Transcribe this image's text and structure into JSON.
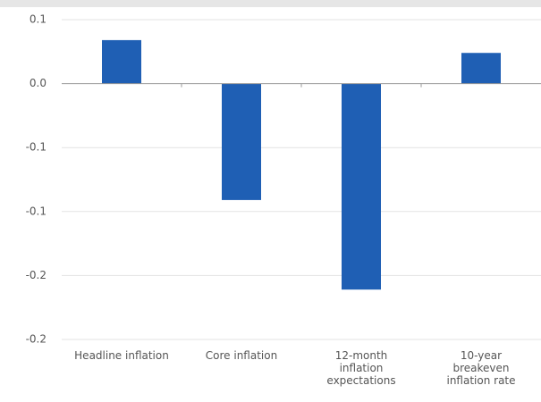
{
  "chart_data": {
    "type": "bar",
    "categories": [
      "Headline inflation",
      "Core inflation",
      "12-month inflation expectations",
      "10-year breakeven inflation rate"
    ],
    "values": [
      0.034,
      -0.091,
      -0.161,
      0.024
    ],
    "color": "#1f5fb4",
    "ylim": [
      -0.2,
      0.05
    ],
    "yticks": [
      {
        "value": 0.05,
        "label": "0.1"
      },
      {
        "value": 0,
        "label": "0.0"
      },
      {
        "value": -0.05,
        "label": "-0.1"
      },
      -0.1,
      {
        "value": -0.15,
        "label": "-0.2"
      },
      -0.2
    ],
    "grid": true
  }
}
